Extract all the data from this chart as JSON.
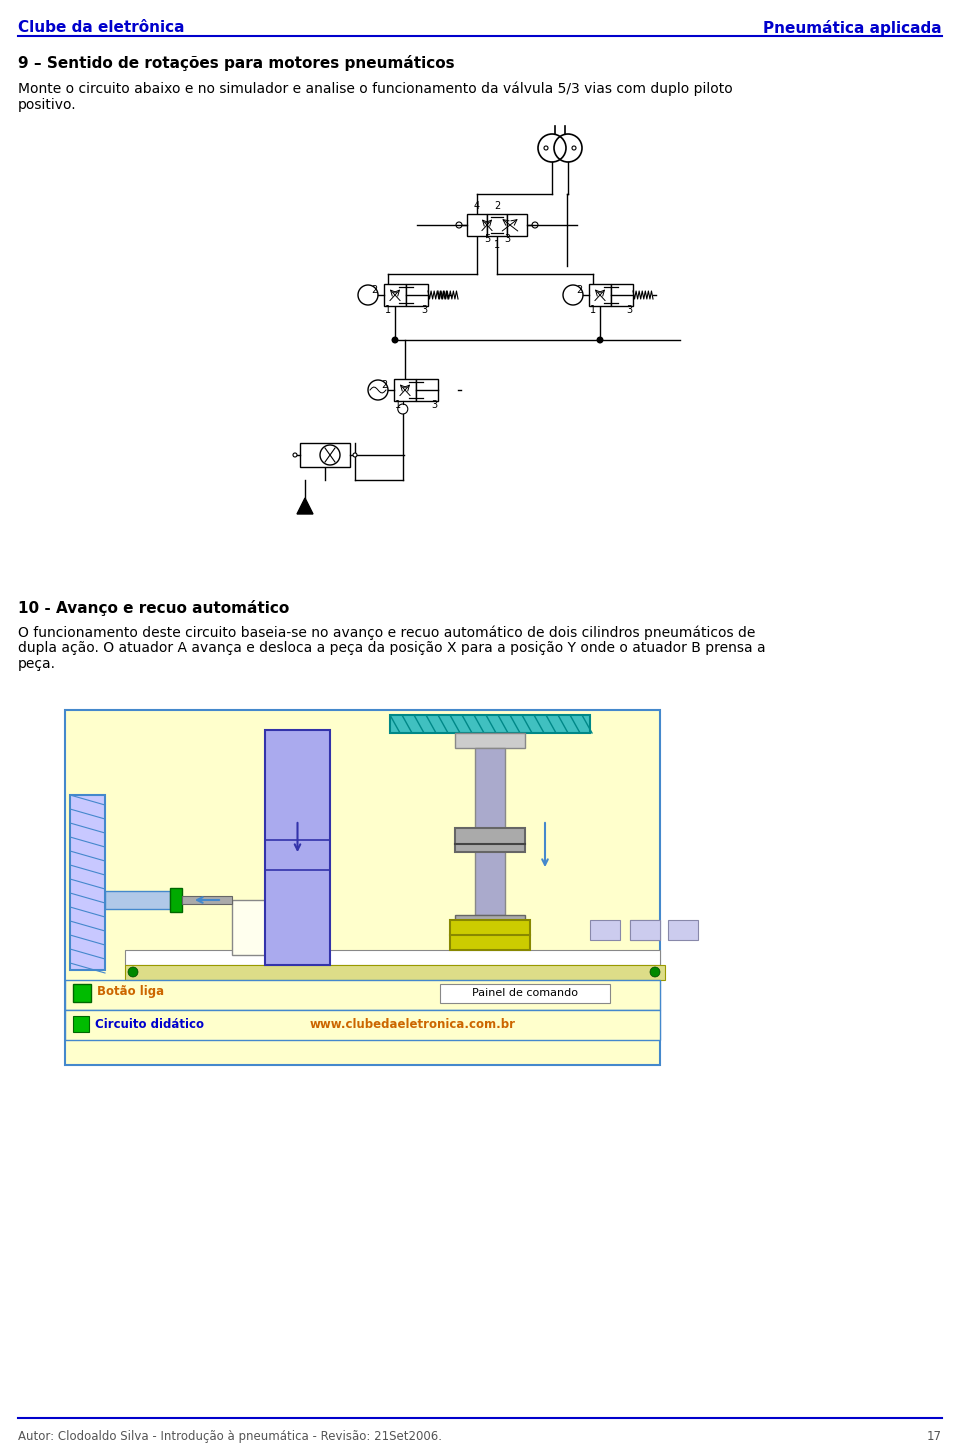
{
  "page_width": 9.6,
  "page_height": 14.51,
  "bg_color": "#ffffff",
  "header_left": "Clube da eletrônica",
  "header_right": "Pneumática aplicada",
  "header_color": "#0000cc",
  "header_line_color": "#0000cc",
  "section9_title": "9 – Sentido de rotações para motores pneumáticos",
  "section9_body1": "Monte o circuito abaixo e no simulador e analise o funcionamento da válvula 5/3 vias com duplo piloto",
  "section9_body2": "positivo.",
  "section10_title": "10 - Avanço e recuo automático",
  "section10_body1": "O funcionamento deste circuito baseia-se no avanço e recuo automático de dois cilindros pneumáticos de",
  "section10_body2": "dupla ação. O atuador A avança e desloca a peça da posição X para a posição Y onde o atuador B prensa a",
  "section10_body3": "peça.",
  "footer_text": "Autor: Clodoaldo Silva - Introdução à pneumática - Revisão: 21Set2006.",
  "footer_page": "17",
  "footer_line_color": "#0000cc",
  "title_fontsize": 11,
  "body_fontsize": 10,
  "header_fontsize": 11,
  "diagram_color": "#000000",
  "ill_border_color": "#4488cc",
  "ill_bg": "#ffffff",
  "wall_fill": "#c8c8ff",
  "wall_hatch_color": "#8888ff",
  "cyl_a_fill": "#aaaaee",
  "cyl_a_dark": "#3333aa",
  "cyl_b_fill": "#ccccee",
  "cyl_b_rod_fill": "#aaaacc",
  "cyl_b_piston_fill": "#999999",
  "press_top_fill": "#40c0c0",
  "press_top_hatch": "#008888",
  "yellow_piece_fill": "#cccc00",
  "yellow_piece_dark": "#888800",
  "conveyor_bg": "#dddd88",
  "conveyor_dot_color": "#008800",
  "small_piece_fill": "#ccccee",
  "small_piece_border": "#8888aa",
  "panel_bg": "#ffffcc",
  "panel_border": "#888888",
  "btn_green": "#00bb00",
  "btn_border": "#006600",
  "btn_label_color": "#cc6600",
  "panel_cmd_border": "#888888",
  "label_blue": "#0000cc",
  "label_orange": "#cc6600",
  "cyl_rod_gray": "#aaaaaa",
  "cyl_rod_dark": "#666666",
  "cyl_connector_fill": "#00aa00",
  "cyl_connector_border": "#006600",
  "workbench_fill": "#ffffee",
  "workbench_border": "#888888"
}
